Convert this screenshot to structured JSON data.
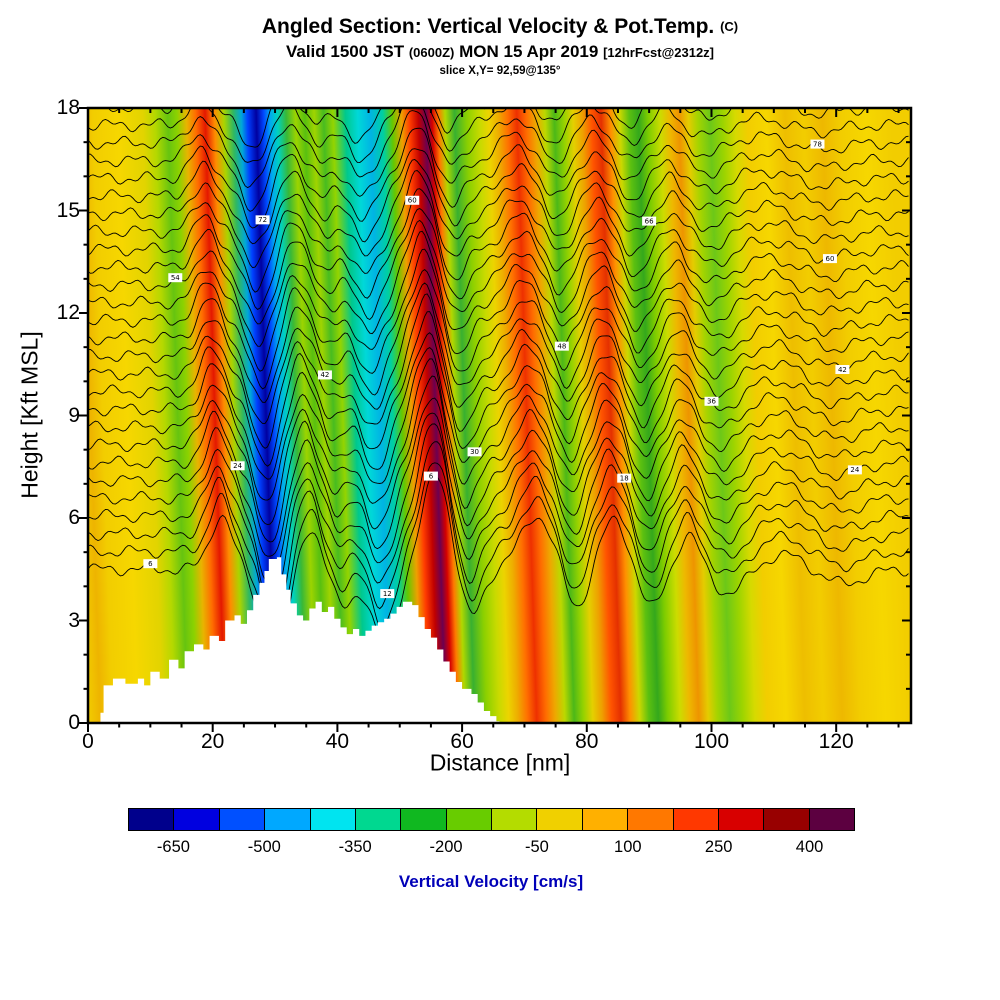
{
  "figure": {
    "title_main": "Angled Section: Vertical Velocity & Pot.Temp.",
    "title_unit": "(C)",
    "valid_prefix": "Valid 1500 JST",
    "valid_z": "(0600Z)",
    "valid_date": "MON 15 Apr 2019",
    "fcst_tag": "[12hrFcst@2312z]",
    "slice_label": "slice X,Y= 92,59@135°"
  },
  "chart_data": {
    "type": "heatmap",
    "subtype": "filled_contour_cross_section_with_isentropes",
    "title": "Angled Section: Vertical Velocity & Pot.Temp. (C)",
    "subtitle": "Valid 1500 JST (0600Z) MON 15 Apr 2019 [12hrFcst@2312z]",
    "slice": "slice X,Y= 92,59@135°",
    "xlabel": "Distance [nm]",
    "ylabel": "Height [Kft MSL]",
    "xlim": [
      0,
      132
    ],
    "ylim": [
      0,
      18
    ],
    "xticks": [
      0,
      20,
      40,
      60,
      80,
      100,
      120
    ],
    "x_minor_step": 5,
    "yticks": [
      0,
      3,
      6,
      9,
      12,
      15,
      18
    ],
    "y_minor_step": 1,
    "grid": false,
    "colorbar": {
      "title": "Vertical Velocity [cm/s]",
      "title_color": "#0000b8",
      "tick_labels": [
        "-650",
        "-500",
        "-350",
        "-200",
        "-50",
        "100",
        "250",
        "400"
      ],
      "colors": [
        "#00008c",
        "#0000e0",
        "#0050ff",
        "#00a8ff",
        "#00e4f0",
        "#00d890",
        "#10b820",
        "#68cc00",
        "#b4dc00",
        "#f0d000",
        "#ffb000",
        "#ff7800",
        "#ff3800",
        "#d80000",
        "#980000",
        "#5c0040"
      ]
    },
    "updraft_centers_nm": [
      22,
      35.5,
      56,
      72,
      84.5,
      96.5
    ],
    "downdraft_centers_nm": [
      30,
      41,
      47.5,
      61.5,
      78.5,
      90.5,
      103
    ],
    "band_tilt": 0.033,
    "field_bands": [
      [
        0,
        "#f2cd00"
      ],
      [
        2,
        "#eeb400"
      ],
      [
        4,
        "#f2cd00"
      ],
      [
        8,
        "#f6d700"
      ],
      [
        12,
        "#e2d400"
      ],
      [
        14,
        "#b4d800"
      ],
      [
        16,
        "#66c410"
      ],
      [
        17.5,
        "#8cd200"
      ],
      [
        19,
        "#e8b400"
      ],
      [
        20.5,
        "#ff6c00"
      ],
      [
        22,
        "#e41800"
      ],
      [
        23.5,
        "#ff8c00"
      ],
      [
        25,
        "#aad400"
      ],
      [
        26.5,
        "#30b860"
      ],
      [
        27.8,
        "#00a8d8"
      ],
      [
        28.8,
        "#0040ff"
      ],
      [
        30.2,
        "#0000a0"
      ],
      [
        31.4,
        "#0048ff"
      ],
      [
        32.4,
        "#00a8f0"
      ],
      [
        33.6,
        "#00d2be"
      ],
      [
        35,
        "#38b838"
      ],
      [
        36.5,
        "#9cd400"
      ],
      [
        38,
        "#58c010"
      ],
      [
        39.5,
        "#a0d400"
      ],
      [
        41,
        "#48bc20"
      ],
      [
        42.5,
        "#94d400"
      ],
      [
        44.5,
        "#00c88c"
      ],
      [
        46.5,
        "#00d8d8"
      ],
      [
        48.5,
        "#00b4e4"
      ],
      [
        50.5,
        "#00d0a0"
      ],
      [
        52,
        "#64c800"
      ],
      [
        53.5,
        "#eea000"
      ],
      [
        54.8,
        "#ff3c00"
      ],
      [
        56.2,
        "#c00000"
      ],
      [
        57.4,
        "#6c0050"
      ],
      [
        58.4,
        "#d40000"
      ],
      [
        59.4,
        "#ff7800"
      ],
      [
        60.5,
        "#b0d800"
      ],
      [
        62,
        "#38b030"
      ],
      [
        64,
        "#8cd000"
      ],
      [
        66,
        "#c8da00"
      ],
      [
        67.5,
        "#ecd400"
      ],
      [
        69,
        "#eeac00"
      ],
      [
        70.5,
        "#ff7000"
      ],
      [
        72,
        "#ee3000"
      ],
      [
        73.5,
        "#ff6c00"
      ],
      [
        75,
        "#eea800"
      ],
      [
        76.5,
        "#bcd800"
      ],
      [
        78,
        "#4cb818"
      ],
      [
        79.5,
        "#94d200"
      ],
      [
        81,
        "#e4d000"
      ],
      [
        82.5,
        "#eea000"
      ],
      [
        84,
        "#ff5400"
      ],
      [
        85.5,
        "#e43000"
      ],
      [
        87,
        "#ff9000"
      ],
      [
        88.5,
        "#ccd800"
      ],
      [
        90,
        "#5cc010"
      ],
      [
        91.5,
        "#34a81c"
      ],
      [
        93,
        "#7ccc00"
      ],
      [
        95,
        "#ccdc00"
      ],
      [
        96.5,
        "#eeb800"
      ],
      [
        98,
        "#ee9400"
      ],
      [
        99.5,
        "#e4cc00"
      ],
      [
        101,
        "#a4d400"
      ],
      [
        103,
        "#6cc818"
      ],
      [
        105,
        "#9cd400"
      ],
      [
        107,
        "#d6da00"
      ],
      [
        109,
        "#f2cd00"
      ],
      [
        112,
        "#f6d700"
      ],
      [
        115,
        "#eebe00"
      ],
      [
        118,
        "#f2cd00"
      ],
      [
        121,
        "#eeb800"
      ],
      [
        124,
        "#f2cd00"
      ],
      [
        128,
        "#f6d700"
      ],
      [
        132,
        "#f2cd00"
      ]
    ],
    "wave_bumps": [
      [
        21.5,
        2.5,
        1.1
      ],
      [
        30,
        3,
        -1.9
      ],
      [
        35.5,
        2.5,
        0.9
      ],
      [
        41,
        2.5,
        -0.7
      ],
      [
        47.5,
        3,
        -1.5
      ],
      [
        56,
        3,
        2.0
      ],
      [
        61.5,
        2.5,
        -1.0
      ],
      [
        72,
        3.5,
        1.1
      ],
      [
        78.5,
        2.5,
        -0.8
      ],
      [
        84.5,
        3,
        1.0
      ],
      [
        90.5,
        2.5,
        -0.8
      ],
      [
        96.5,
        2.5,
        0.7
      ],
      [
        103,
        3.5,
        -0.5
      ],
      [
        112,
        5,
        0.3
      ],
      [
        121,
        5,
        -0.3
      ]
    ],
    "isentropes": {
      "count": 27,
      "base_start_kft": 4.5,
      "base_step_kft": 0.52,
      "label_start_c": 6,
      "label_step_c": 3
    },
    "terrain_kft": [
      [
        2,
        0.3
      ],
      [
        2.5,
        1.1
      ],
      [
        4,
        1.3
      ],
      [
        6,
        1.15
      ],
      [
        8,
        1.3
      ],
      [
        9,
        1.1
      ],
      [
        10,
        1.5
      ],
      [
        11.5,
        1.3
      ],
      [
        13,
        1.85
      ],
      [
        14.5,
        1.6
      ],
      [
        15.5,
        2.1
      ],
      [
        17,
        2.3
      ],
      [
        18.5,
        2.15
      ],
      [
        19.5,
        2.55
      ],
      [
        21,
        2.4
      ],
      [
        22,
        3.0
      ],
      [
        23.5,
        3.15
      ],
      [
        24.5,
        2.9
      ],
      [
        25.5,
        3.3
      ],
      [
        26.5,
        3.75
      ],
      [
        27.5,
        4.1
      ],
      [
        28.3,
        4.45
      ],
      [
        29,
        4.8
      ],
      [
        30.3,
        4.85
      ],
      [
        31,
        4.35
      ],
      [
        31.8,
        3.9
      ],
      [
        32.5,
        3.5
      ],
      [
        33.5,
        3.15
      ],
      [
        34.5,
        3.0
      ],
      [
        35.5,
        3.35
      ],
      [
        36.5,
        3.55
      ],
      [
        37.5,
        3.25
      ],
      [
        38.5,
        3.4
      ],
      [
        39.5,
        3.05
      ],
      [
        40.5,
        2.8
      ],
      [
        41.5,
        2.6
      ],
      [
        42.5,
        2.75
      ],
      [
        43.5,
        2.55
      ],
      [
        44.5,
        2.7
      ],
      [
        45.5,
        2.85
      ],
      [
        46.5,
        2.95
      ],
      [
        47.5,
        3.05
      ],
      [
        48.5,
        3.2
      ],
      [
        49.5,
        3.4
      ],
      [
        50.5,
        3.55
      ],
      [
        52,
        3.45
      ],
      [
        53,
        3.1
      ],
      [
        54,
        2.75
      ],
      [
        55,
        2.5
      ],
      [
        56,
        2.15
      ],
      [
        57,
        1.8
      ],
      [
        58,
        1.5
      ],
      [
        59,
        1.2
      ],
      [
        60,
        1.0
      ],
      [
        61.5,
        0.85
      ],
      [
        62.5,
        0.6
      ],
      [
        63.5,
        0.35
      ],
      [
        64.5,
        0.2
      ],
      [
        65.5,
        0.05
      ],
      [
        66,
        0
      ]
    ]
  }
}
